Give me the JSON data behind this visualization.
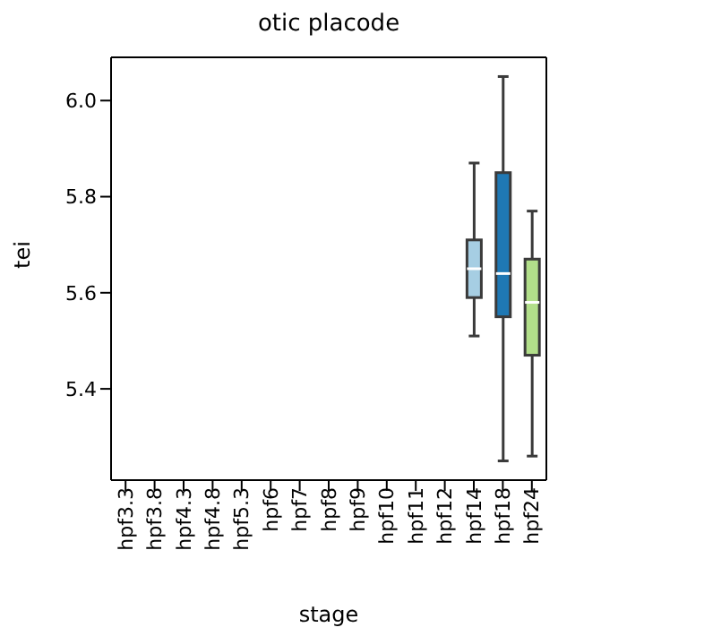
{
  "chart_data": {
    "type": "box",
    "title": "otic placode",
    "xlabel": "stage",
    "ylabel": "tei",
    "categories": [
      "hpf3.3",
      "hpf3.8",
      "hpf4.3",
      "hpf4.8",
      "hpf5.3",
      "hpf6",
      "hpf7",
      "hpf8",
      "hpf9",
      "hpf10",
      "hpf11",
      "hpf12",
      "hpf14",
      "hpf18",
      "hpf24"
    ],
    "boxes": [
      null,
      null,
      null,
      null,
      null,
      null,
      null,
      null,
      null,
      null,
      null,
      null,
      {
        "low": 5.51,
        "q1": 5.59,
        "median": 5.65,
        "q3": 5.71,
        "high": 5.87
      },
      {
        "low": 5.25,
        "q1": 5.55,
        "median": 5.64,
        "q3": 5.85,
        "high": 6.05
      },
      {
        "low": 5.26,
        "q1": 5.47,
        "median": 5.58,
        "q3": 5.67,
        "high": 5.77
      }
    ],
    "colors": [
      "#a6cee3",
      "#a6cee3",
      "#a6cee3",
      "#a6cee3",
      "#a6cee3",
      "#a6cee3",
      "#a6cee3",
      "#a6cee3",
      "#a6cee3",
      "#a6cee3",
      "#a6cee3",
      "#a6cee3",
      "#a6cee3",
      "#1f78b4",
      "#b2df8a"
    ],
    "ylim": [
      5.21,
      6.09
    ],
    "yticks": [
      5.4,
      5.6,
      5.8,
      {
        "value": 6,
        "label": "6.0"
      }
    ]
  }
}
